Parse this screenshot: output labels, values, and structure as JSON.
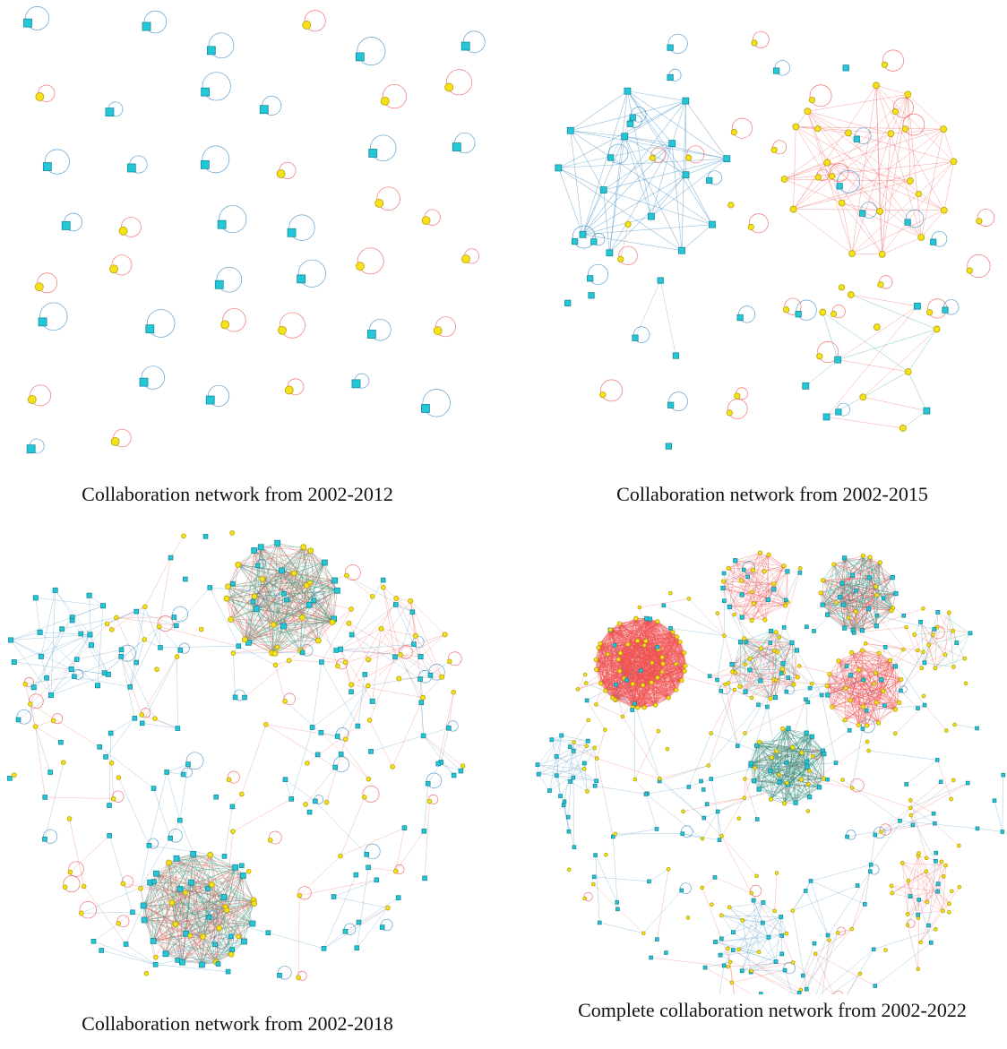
{
  "panels": [
    {
      "caption": "Collaboration network from 2002-2012"
    },
    {
      "caption": "Collaboration network from 2002-2015"
    },
    {
      "caption": "Collaboration network from 2002-2018"
    },
    {
      "caption": "Complete collaboration network from 2002-2022"
    }
  ]
}
